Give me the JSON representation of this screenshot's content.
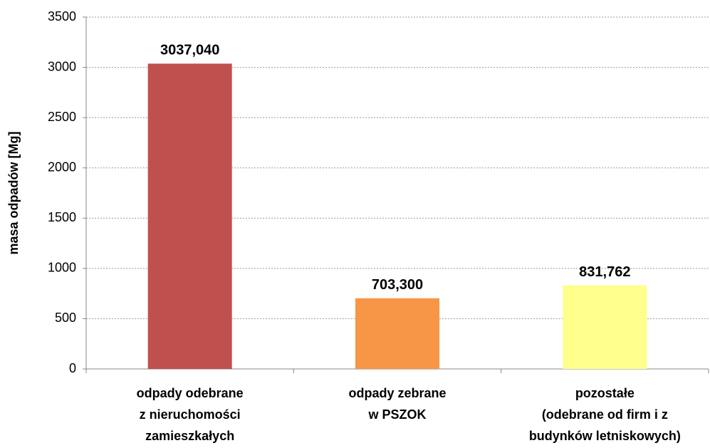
{
  "chart_data": {
    "type": "bar",
    "y_label": "masa odpadów [Mg]",
    "categories": [
      [
        "odpady odebrane",
        "z nieruchomości",
        "zamieszkałych"
      ],
      [
        "odpady zebrane",
        "w PSZOK"
      ],
      [
        "pozostałe",
        "(odebrane od firm i z",
        "budynków letniskowych)"
      ]
    ],
    "values": [
      3037.04,
      703.3,
      831.762
    ],
    "value_labels": [
      "3037,040",
      "703,300",
      "831,762"
    ],
    "colors": [
      "#c0504d",
      "#f79646",
      "#ffff8c"
    ],
    "ylim": [
      0,
      3500
    ],
    "yticks": [
      0,
      500,
      1000,
      1500,
      2000,
      2500,
      3000,
      3500
    ],
    "grid": true
  }
}
